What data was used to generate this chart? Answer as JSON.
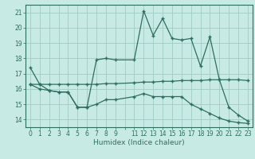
{
  "xlabel": "Humidex (Indice chaleur)",
  "background_color": "#c8eae4",
  "grid_color": "#a0ccc4",
  "line_color": "#2d6e60",
  "xlim": [
    -0.5,
    23.5
  ],
  "ylim": [
    13.5,
    21.5
  ],
  "yticks": [
    14,
    15,
    16,
    17,
    18,
    19,
    20,
    21
  ],
  "xtick_labels": [
    "0",
    "1",
    "2",
    "3",
    "4",
    "5",
    "6",
    "7",
    "8",
    "9",
    "",
    "11",
    "12",
    "13",
    "14",
    "15",
    "16",
    "17",
    "18",
    "19",
    "20",
    "21",
    "22",
    "23"
  ],
  "line1_x": [
    0,
    1,
    2,
    3,
    4,
    5,
    6,
    7,
    8,
    9,
    11,
    12,
    13,
    14,
    15,
    16,
    17,
    18,
    19,
    20,
    21,
    22,
    23
  ],
  "line1_y": [
    17.4,
    16.3,
    15.9,
    15.8,
    15.8,
    14.8,
    14.8,
    17.9,
    18.0,
    17.9,
    17.9,
    21.1,
    19.5,
    20.6,
    19.3,
    19.2,
    19.3,
    17.5,
    19.4,
    16.6,
    14.8,
    14.3,
    13.9
  ],
  "line2_x": [
    0,
    1,
    2,
    3,
    4,
    5,
    6,
    7,
    8,
    9,
    11,
    12,
    13,
    14,
    15,
    16,
    17,
    18,
    19,
    20,
    21,
    22,
    23
  ],
  "line2_y": [
    16.3,
    16.3,
    16.3,
    16.3,
    16.3,
    16.3,
    16.3,
    16.3,
    16.35,
    16.35,
    16.4,
    16.45,
    16.45,
    16.5,
    16.5,
    16.55,
    16.55,
    16.55,
    16.6,
    16.6,
    16.6,
    16.6,
    16.55
  ],
  "line3_x": [
    0,
    1,
    2,
    3,
    4,
    5,
    6,
    7,
    8,
    9,
    11,
    12,
    13,
    14,
    15,
    16,
    17,
    18,
    19,
    20,
    21,
    22,
    23
  ],
  "line3_y": [
    16.3,
    16.0,
    15.9,
    15.8,
    15.8,
    14.8,
    14.8,
    15.0,
    15.3,
    15.3,
    15.5,
    15.7,
    15.5,
    15.5,
    15.5,
    15.5,
    15.0,
    14.7,
    14.4,
    14.1,
    13.9,
    13.8,
    13.75
  ]
}
